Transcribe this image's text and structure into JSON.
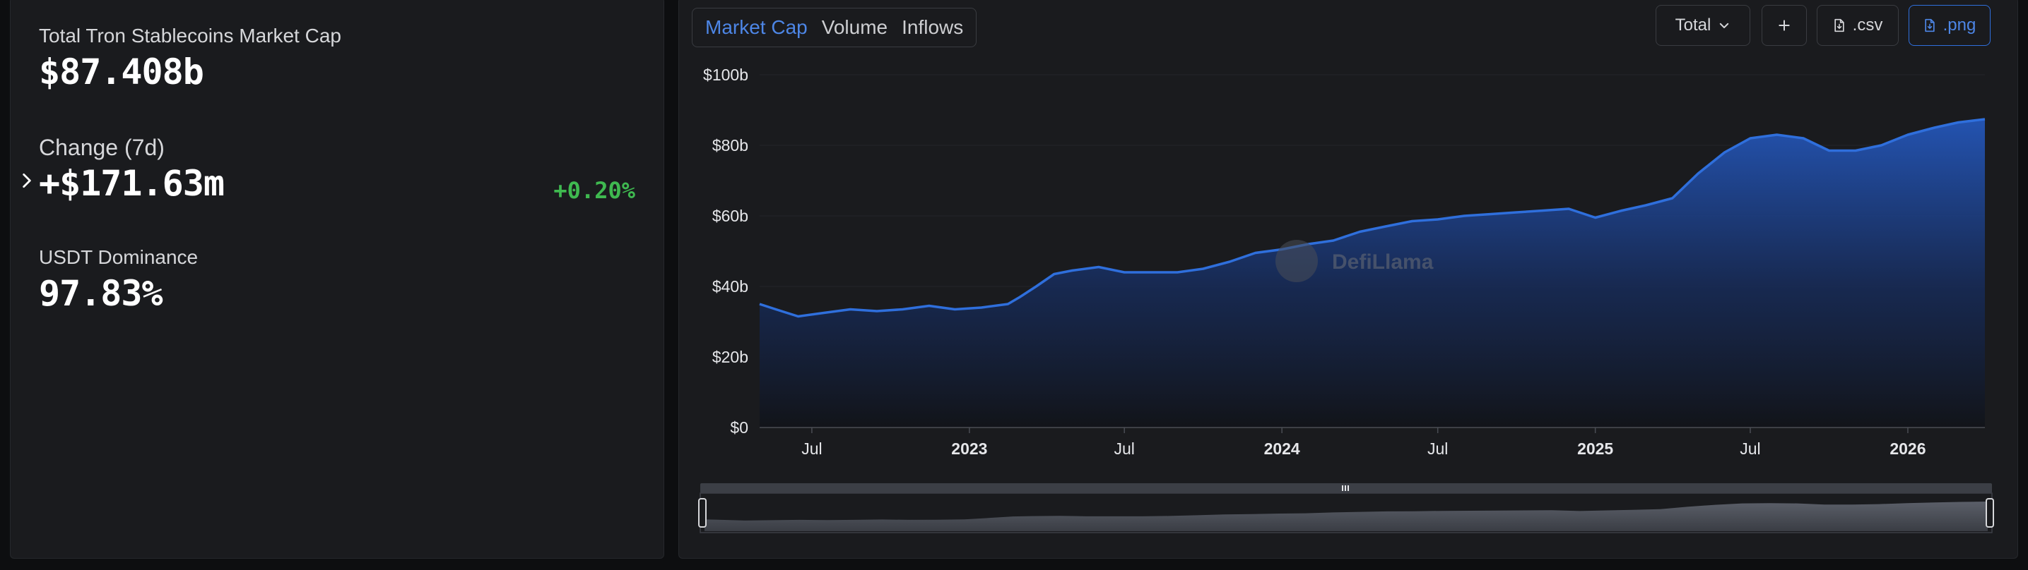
{
  "stats": {
    "market_cap_label": "Total Tron Stablecoins Market Cap",
    "market_cap_value": "$87.408b",
    "change_label": "Change (7d)",
    "change_value": "+$171.63m",
    "change_pct": "+0.20%",
    "dominance_label": "USDT Dominance",
    "dominance_value": "97.83%"
  },
  "tabs": [
    {
      "label": "Market Cap",
      "active": true
    },
    {
      "label": "Volume",
      "active": false
    },
    {
      "label": "Inflows",
      "active": false
    }
  ],
  "controls": {
    "total_label": "Total",
    "csv_label": ".csv",
    "png_label": ".png"
  },
  "watermark": "DefiLlama",
  "colors": {
    "accent": "#4d86e6",
    "line": "#2f6fdc",
    "positive": "#3fb950"
  },
  "chart_data": {
    "type": "area",
    "title": "",
    "xlabel": "",
    "ylabel": "",
    "ylim": [
      0,
      100
    ],
    "y_unit": "b",
    "y_ticks": [
      "$0",
      "$20b",
      "$40b",
      "$60b",
      "$80b",
      "$100b"
    ],
    "x_range": [
      "2022-05-01",
      "2026-04-01"
    ],
    "x_ticks": [
      {
        "date": "2022-07-01",
        "label": "Jul",
        "bold": false
      },
      {
        "date": "2023-01-01",
        "label": "2023",
        "bold": true
      },
      {
        "date": "2023-07-01",
        "label": "Jul",
        "bold": false
      },
      {
        "date": "2024-01-01",
        "label": "2024",
        "bold": true
      },
      {
        "date": "2024-07-01",
        "label": "Jul",
        "bold": false
      },
      {
        "date": "2025-01-01",
        "label": "2025",
        "bold": true
      },
      {
        "date": "2025-07-01",
        "label": "Jul",
        "bold": false
      },
      {
        "date": "2026-01-01",
        "label": "2026",
        "bold": true
      }
    ],
    "series": [
      {
        "x": [
          "2022-05-01",
          "2022-05-20",
          "2022-06-15",
          "2022-07-15",
          "2022-08-15",
          "2022-09-15",
          "2022-10-15",
          "2022-11-15",
          "2022-12-15",
          "2023-01-15",
          "2023-02-15",
          "2023-03-01",
          "2023-03-20",
          "2023-04-10",
          "2023-05-01",
          "2023-06-01",
          "2023-07-01",
          "2023-08-01",
          "2023-09-01",
          "2023-10-01",
          "2023-11-01",
          "2023-12-01",
          "2024-01-01",
          "2024-02-01",
          "2024-03-01",
          "2024-04-01",
          "2024-05-01",
          "2024-06-01",
          "2024-07-01",
          "2024-08-01",
          "2024-09-01",
          "2024-10-01",
          "2024-11-01",
          "2024-12-01",
          "2025-01-01",
          "2025-02-01",
          "2025-03-01",
          "2025-04-01",
          "2025-05-01",
          "2025-06-01",
          "2025-07-01",
          "2025-08-01",
          "2025-09-01",
          "2025-10-01",
          "2025-11-01",
          "2025-12-01",
          "2026-01-01",
          "2026-02-01",
          "2026-03-01",
          "2026-04-01"
        ],
        "y": [
          35,
          33.5,
          31.5,
          32.5,
          33.5,
          33,
          33.5,
          34.5,
          33.5,
          34,
          35,
          37,
          40,
          43.5,
          44.5,
          45.5,
          44,
          44,
          44,
          45,
          47,
          49.5,
          50.5,
          52,
          53,
          55.5,
          57,
          58.5,
          59,
          60,
          60.5,
          61,
          61.5,
          62,
          59.5,
          61.5,
          63,
          65,
          72,
          78,
          82,
          83,
          82,
          78.5,
          78.5,
          80,
          83,
          85,
          86.5,
          87.4
        ]
      }
    ],
    "grid": true
  }
}
